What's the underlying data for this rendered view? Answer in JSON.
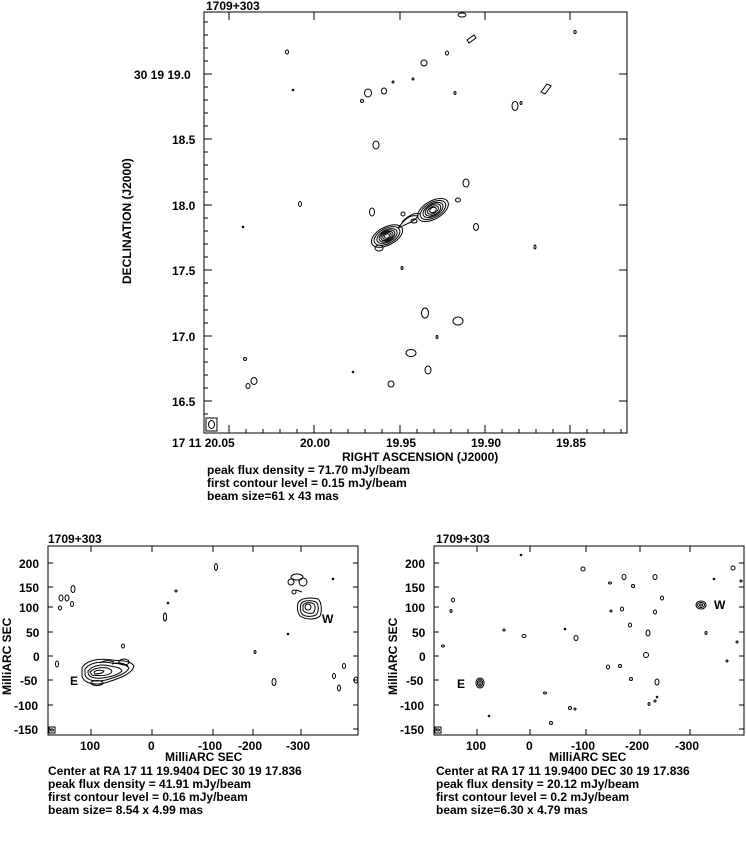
{
  "panels": [
    {
      "id": "top",
      "title": "1709+303",
      "xlabel": "RIGHT ASCENSION (J2000)",
      "ylabel": "DECLINATION (J2000)",
      "xticks": [
        "17 11 20.05",
        "20.00",
        "19.95",
        "19.90",
        "19.85"
      ],
      "yticks": [
        "16.5",
        "17.0",
        "17.5",
        "18.0",
        "18.5",
        "30 19 19.0"
      ],
      "caption": [
        "peak flux density = 71.70 mJy/beam",
        "first contour level = 0.15 mJy/beam",
        "beam size=61 x 43 mas"
      ],
      "labels": []
    },
    {
      "id": "bottom-left",
      "title": "1709+303",
      "xlabel": "MilliARC SEC",
      "ylabel": "MilliARC SEC",
      "xticks": [
        "100",
        "0",
        "-100",
        "-200",
        "-300"
      ],
      "yticks": [
        "-150",
        "-100",
        "-50",
        "0",
        "50",
        "100",
        "150",
        "200"
      ],
      "caption": [
        "Center at RA 17 11 19.9404  DEC 30 19 17.836",
        "peak flux density = 41.91 mJy/beam",
        "first contour level = 0.16 mJy/beam",
        "beam size= 8.54 x 4.99 mas"
      ],
      "labels": [
        "E",
        "W"
      ]
    },
    {
      "id": "bottom-right",
      "title": "1709+303",
      "xlabel": "MilliARC SEC",
      "ylabel": "MilliARC SEC",
      "xticks": [
        "100",
        "0",
        "-100",
        "-200",
        "-300"
      ],
      "yticks": [
        "-150",
        "-100",
        "-50",
        "0",
        "50",
        "100",
        "150",
        "200"
      ],
      "caption": [
        "Center at RA 17 11 19.9400  DEC 30 19 17.836",
        "peak flux density = 20.12 mJy/beam",
        "first contour level = 0.2 mJy/beam",
        "beam size=6.30 x 4.79 mas"
      ],
      "labels": [
        "E",
        "W"
      ]
    }
  ]
}
